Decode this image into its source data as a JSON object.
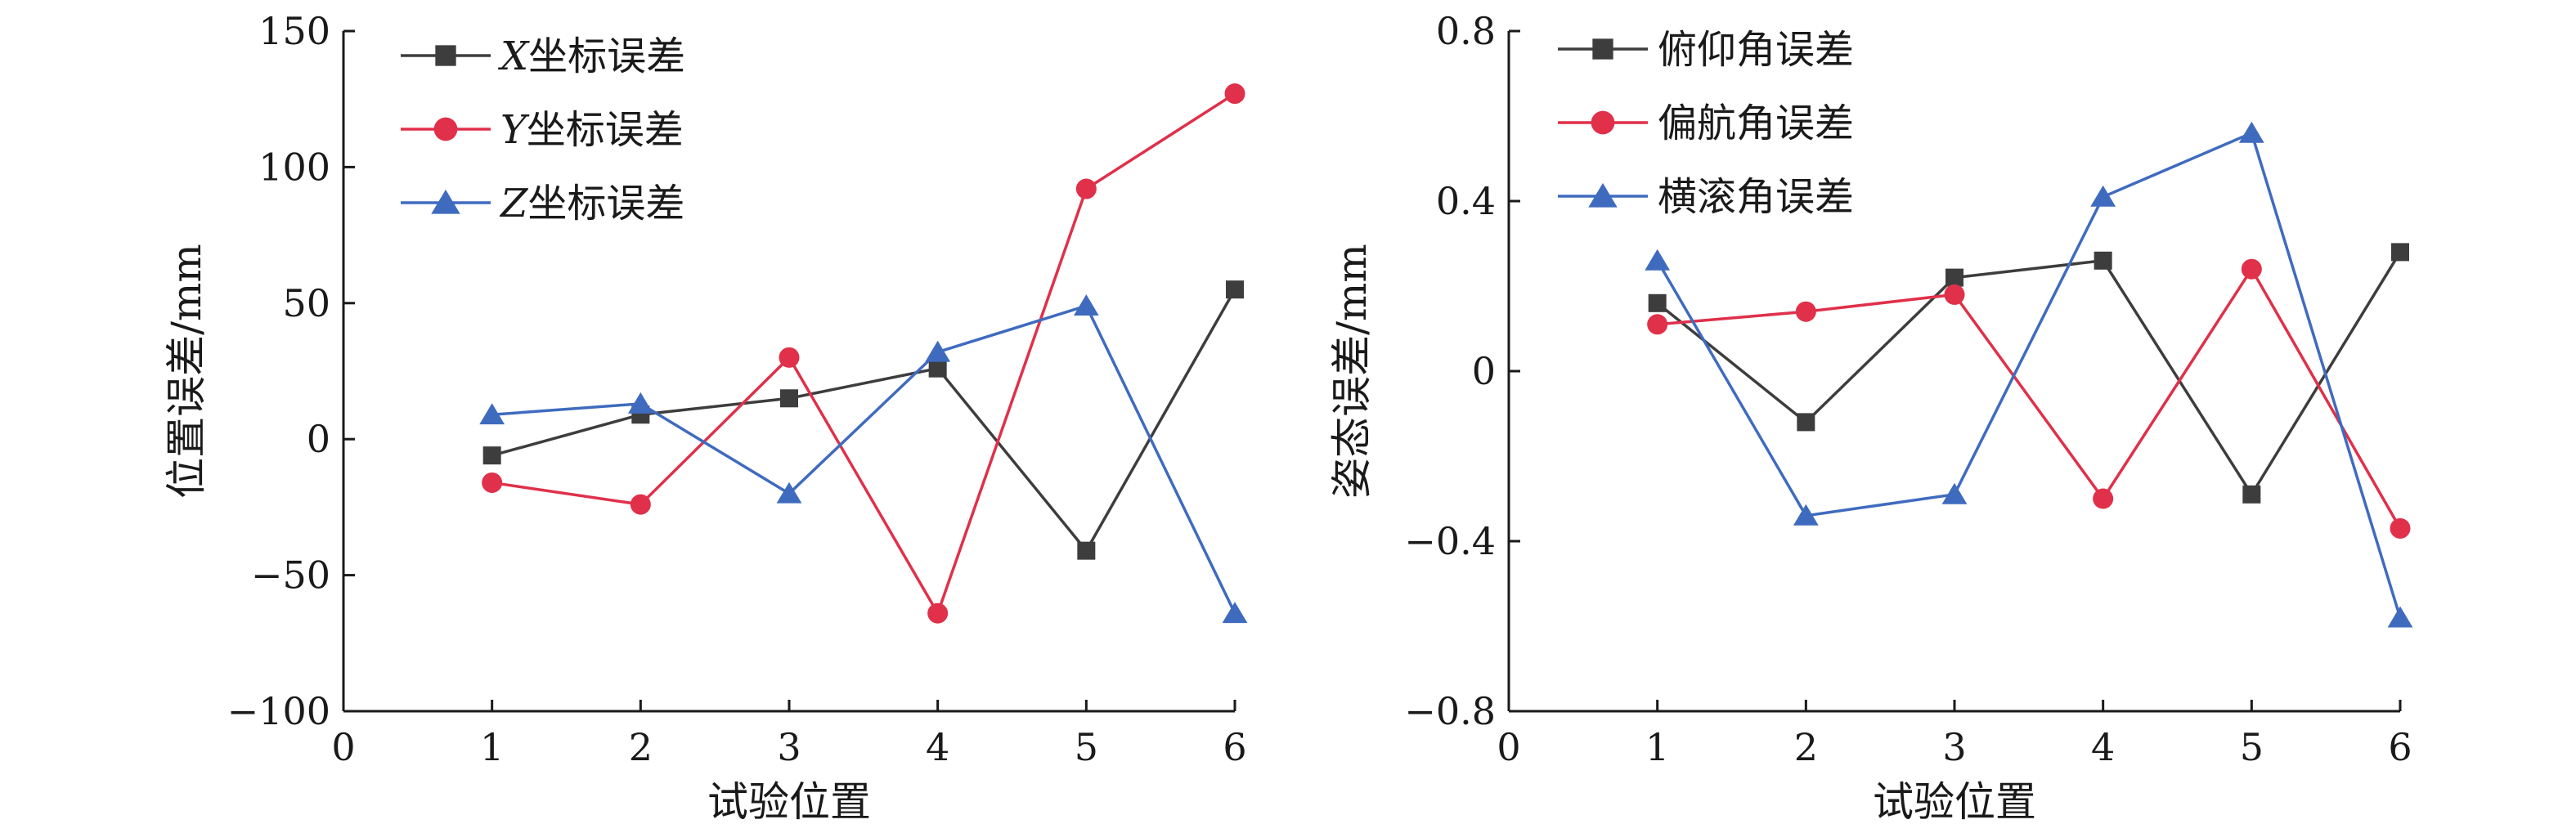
{
  "chart_data": [
    {
      "type": "line",
      "title": "",
      "xlabel": "试验位置",
      "ylabel": "位置误差/mm",
      "xlim": [
        0,
        6
      ],
      "ylim": [
        -100,
        150
      ],
      "xticks": [
        "0",
        "1",
        "2",
        "3",
        "4",
        "5",
        "6"
      ],
      "yticks": [
        "150",
        "100",
        "50",
        "0",
        "−50",
        "−100"
      ],
      "ytick_values": [
        150,
        100,
        50,
        0,
        -50,
        -100
      ],
      "grid": false,
      "legend_position": "top-left",
      "x": [
        1,
        2,
        3,
        4,
        5,
        6
      ],
      "series": [
        {
          "name": "X坐标误差",
          "name_var": "X",
          "name_rest": "坐标误差",
          "color": "#3d3d3d",
          "marker": "square",
          "values": [
            -6,
            9,
            15,
            26,
            -41,
            55
          ]
        },
        {
          "name": "Y坐标误差",
          "name_var": "Y",
          "name_rest": "坐标误差",
          "color": "#e0304a",
          "marker": "circle",
          "values": [
            -16,
            -24,
            30,
            -64,
            92,
            127
          ]
        },
        {
          "name": "Z坐标误差",
          "name_var": "Z",
          "name_rest": "坐标误差",
          "color": "#3f6bbf",
          "marker": "triangle",
          "values": [
            9,
            13,
            -20,
            32,
            49,
            -64
          ]
        }
      ]
    },
    {
      "type": "line",
      "title": "",
      "xlabel": "试验位置",
      "ylabel": "姿态误差/mm",
      "xlim": [
        0,
        6
      ],
      "ylim": [
        -0.8,
        0.8
      ],
      "xticks": [
        "0",
        "1",
        "2",
        "3",
        "4",
        "5",
        "6"
      ],
      "yticks": [
        "0.8",
        "0.4",
        "0",
        "−0.4",
        "−0.8"
      ],
      "ytick_values": [
        0.8,
        0.4,
        0,
        -0.4,
        -0.8
      ],
      "grid": false,
      "legend_position": "top-left",
      "x": [
        1,
        2,
        3,
        4,
        5,
        6
      ],
      "series": [
        {
          "name": "俯仰角误差",
          "name_var": "",
          "name_rest": "俯仰角误差",
          "color": "#3d3d3d",
          "marker": "square",
          "values": [
            0.16,
            -0.12,
            0.22,
            0.26,
            -0.29,
            0.28
          ]
        },
        {
          "name": "偏航角误差",
          "name_var": "",
          "name_rest": "偏航角误差",
          "color": "#e0304a",
          "marker": "circle",
          "values": [
            0.11,
            0.14,
            0.18,
            -0.3,
            0.24,
            -0.37
          ]
        },
        {
          "name": "横滚角误差",
          "name_var": "",
          "name_rest": "横滚角误差",
          "color": "#3f6bbf",
          "marker": "triangle",
          "values": [
            0.26,
            -0.34,
            -0.29,
            0.41,
            0.56,
            -0.58
          ]
        }
      ]
    }
  ]
}
